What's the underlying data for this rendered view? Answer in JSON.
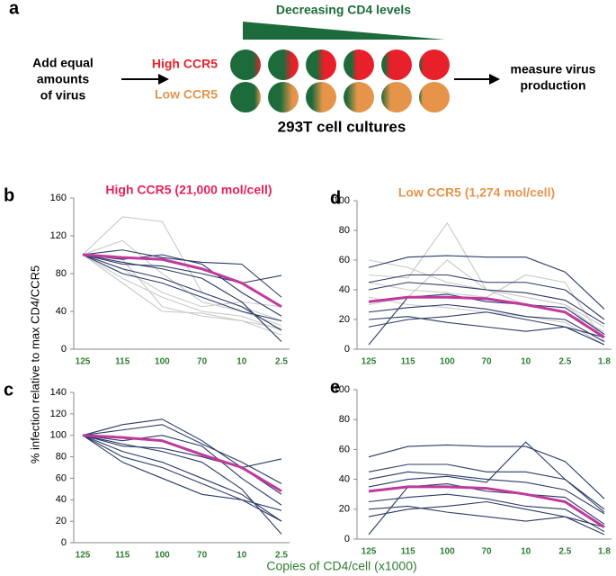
{
  "diagram": {
    "panel": "a",
    "gradient_label": "Decreasing CD4 levels",
    "left_text": [
      "Add equal",
      "amounts",
      "of virus"
    ],
    "row_high": "High CCR5",
    "row_low": "Low CCR5",
    "right_text": [
      "measure virus",
      "production"
    ],
    "caption": "293T cell cultures"
  },
  "figure": {
    "y_label": "% infection relative to max CD4/CCR5",
    "x_label": "Copies of CD4/cell (x1000)"
  },
  "chart_data": [
    {
      "type": "line",
      "panel": "b",
      "title": "High CCR5 (21,000 mol/cell)",
      "categories": [
        "125",
        "115",
        "100",
        "70",
        "10",
        "2.5"
      ],
      "ylim": [
        0,
        160
      ],
      "yticks": [
        0,
        40,
        80,
        120,
        160
      ],
      "series": [
        {
          "color": "#c8c8c8",
          "values": [
            100,
            140,
            135,
            60,
            45,
            30
          ]
        },
        {
          "color": "#c8c8c8",
          "values": [
            100,
            115,
            80,
            50,
            40,
            25
          ]
        },
        {
          "color": "#c8c8c8",
          "values": [
            100,
            75,
            55,
            40,
            35,
            20
          ]
        },
        {
          "color": "#c8c8c8",
          "values": [
            100,
            95,
            45,
            35,
            30,
            15
          ]
        },
        {
          "color": "#c8c8c8",
          "values": [
            100,
            85,
            60,
            45,
            50,
            45
          ]
        },
        {
          "color": "#c8c8c8",
          "values": [
            100,
            70,
            40,
            38,
            30,
            22
          ]
        },
        {
          "color": "#2b3a67",
          "values": [
            100,
            90,
            88,
            80,
            70,
            78
          ]
        },
        {
          "color": "#2b3a67",
          "values": [
            100,
            95,
            100,
            90,
            60,
            35
          ]
        },
        {
          "color": "#2b3a67",
          "values": [
            100,
            85,
            75,
            60,
            45,
            20
          ]
        },
        {
          "color": "#2b3a67",
          "values": [
            100,
            105,
            97,
            92,
            90,
            55
          ]
        },
        {
          "color": "#2b3a67",
          "values": [
            100,
            80,
            70,
            55,
            40,
            30
          ]
        },
        {
          "color": "#2b3a67",
          "values": [
            100,
            92,
            85,
            75,
            50,
            8
          ]
        },
        {
          "color": "#c0399c",
          "values": [
            100,
            97,
            95,
            85,
            70,
            45
          ]
        }
      ]
    },
    {
      "type": "line",
      "panel": "c",
      "categories": [
        "125",
        "115",
        "100",
        "70",
        "10",
        "2.5"
      ],
      "ylim": [
        0,
        140
      ],
      "yticks": [
        0,
        20,
        40,
        60,
        80,
        100,
        120,
        140
      ],
      "series": [
        {
          "color": "#2b3a67",
          "values": [
            100,
            90,
            88,
            80,
            70,
            78
          ]
        },
        {
          "color": "#2b3a67",
          "values": [
            100,
            95,
            100,
            90,
            60,
            35
          ]
        },
        {
          "color": "#2b3a67",
          "values": [
            100,
            85,
            75,
            60,
            45,
            20
          ]
        },
        {
          "color": "#2b3a67",
          "values": [
            100,
            105,
            110,
            92,
            75,
            55
          ]
        },
        {
          "color": "#2b3a67",
          "values": [
            100,
            80,
            70,
            55,
            40,
            30
          ]
        },
        {
          "color": "#2b3a67",
          "values": [
            100,
            92,
            85,
            75,
            50,
            8
          ]
        },
        {
          "color": "#2b3a67",
          "values": [
            100,
            110,
            115,
            95,
            70,
            45
          ]
        },
        {
          "color": "#2b3a67",
          "values": [
            100,
            75,
            60,
            45,
            40,
            20
          ]
        },
        {
          "color": "#c0399c",
          "values": [
            100,
            98,
            95,
            82,
            70,
            48
          ]
        }
      ]
    },
    {
      "type": "line",
      "panel": "d",
      "title": "Low CCR5 (1,274 mol/cell)",
      "categories": [
        "125",
        "115",
        "100",
        "70",
        "10",
        "2.5",
        "1.8"
      ],
      "ylim": [
        0,
        100
      ],
      "yticks": [
        0,
        20,
        40,
        60,
        80,
        100
      ],
      "series": [
        {
          "color": "#c8c8c8",
          "values": [
            60,
            55,
            45,
            40,
            35,
            30,
            15
          ]
        },
        {
          "color": "#c8c8c8",
          "values": [
            50,
            48,
            85,
            40,
            35,
            30,
            10
          ]
        },
        {
          "color": "#c8c8c8",
          "values": [
            45,
            40,
            38,
            35,
            50,
            45,
            5
          ]
        },
        {
          "color": "#c8c8c8",
          "values": [
            30,
            35,
            60,
            40,
            30,
            25,
            12
          ]
        },
        {
          "color": "#c8c8c8",
          "values": [
            35,
            30,
            28,
            25,
            22,
            18,
            3
          ]
        },
        {
          "color": "#2b3a67",
          "values": [
            3,
            35,
            37,
            32,
            30,
            28,
            10
          ]
        },
        {
          "color": "#2b3a67",
          "values": [
            55,
            62,
            63,
            62,
            62,
            52,
            27
          ]
        },
        {
          "color": "#2b3a67",
          "values": [
            40,
            45,
            43,
            40,
            38,
            33,
            17
          ]
        },
        {
          "color": "#2b3a67",
          "values": [
            25,
            28,
            30,
            27,
            22,
            20,
            5
          ]
        },
        {
          "color": "#2b3a67",
          "values": [
            20,
            22,
            18,
            15,
            12,
            15,
            3
          ]
        },
        {
          "color": "#2b3a67",
          "values": [
            45,
            50,
            50,
            45,
            45,
            40,
            20
          ]
        },
        {
          "color": "#2b3a67",
          "values": [
            15,
            20,
            22,
            25,
            20,
            15,
            8
          ]
        },
        {
          "color": "#c0399c",
          "values": [
            32,
            35,
            35,
            34,
            30,
            25,
            8
          ]
        }
      ]
    },
    {
      "type": "line",
      "panel": "e",
      "categories": [
        "125",
        "115",
        "100",
        "70",
        "10",
        "2.5",
        "1.8"
      ],
      "ylim": [
        0,
        100
      ],
      "yticks": [
        0,
        20,
        40,
        60,
        80,
        100
      ],
      "series": [
        {
          "color": "#2b3a67",
          "values": [
            3,
            35,
            37,
            32,
            30,
            28,
            10
          ]
        },
        {
          "color": "#2b3a67",
          "values": [
            55,
            62,
            63,
            62,
            62,
            52,
            27
          ]
        },
        {
          "color": "#2b3a67",
          "values": [
            40,
            45,
            43,
            40,
            38,
            33,
            17
          ]
        },
        {
          "color": "#2b3a67",
          "values": [
            25,
            28,
            30,
            27,
            22,
            20,
            5
          ]
        },
        {
          "color": "#2b3a67",
          "values": [
            20,
            22,
            18,
            15,
            12,
            15,
            3
          ]
        },
        {
          "color": "#2b3a67",
          "values": [
            45,
            50,
            50,
            45,
            45,
            40,
            20
          ]
        },
        {
          "color": "#2b3a67",
          "values": [
            15,
            20,
            22,
            25,
            20,
            15,
            8
          ]
        },
        {
          "color": "#2b3a67",
          "values": [
            35,
            40,
            42,
            38,
            65,
            40,
            18
          ]
        },
        {
          "color": "#c0399c",
          "values": [
            32,
            35,
            35,
            34,
            30,
            25,
            8
          ]
        }
      ]
    }
  ]
}
